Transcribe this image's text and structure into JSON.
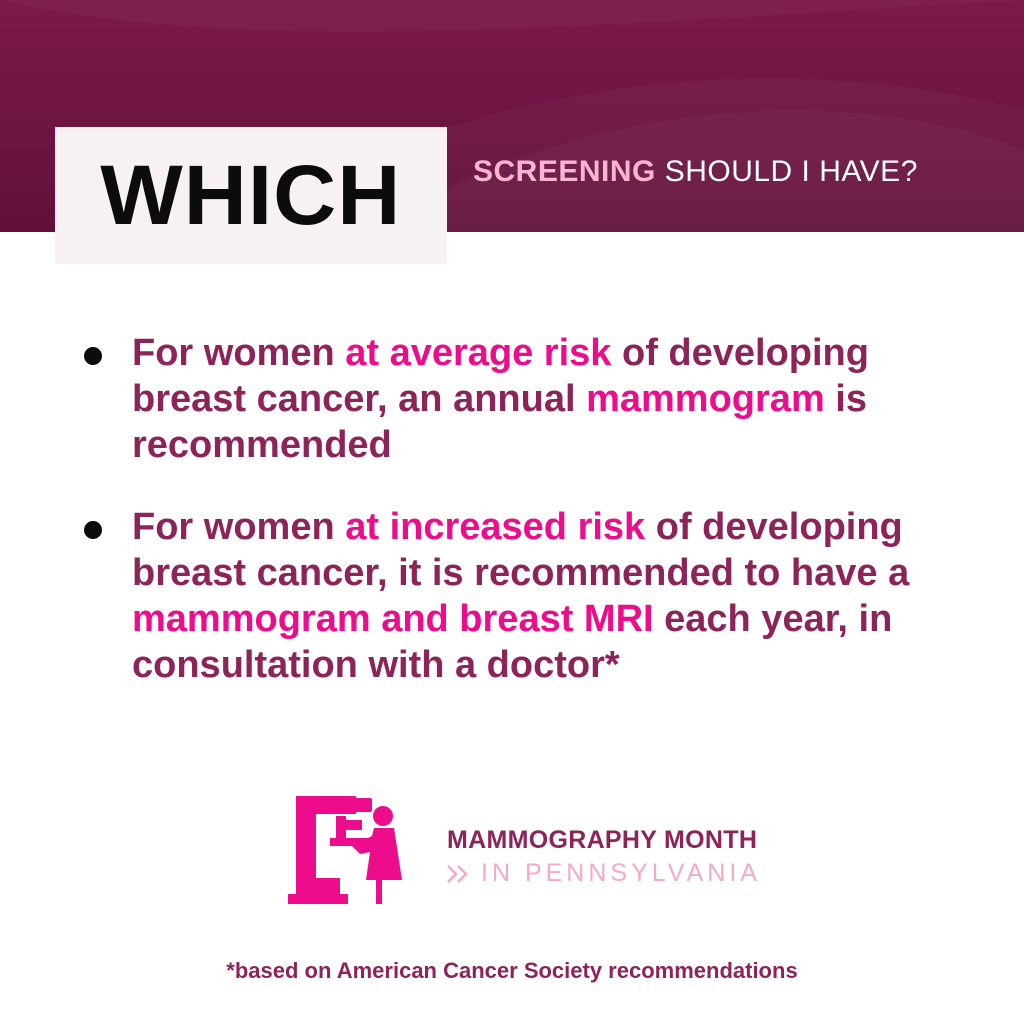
{
  "header": {
    "which_label": "WHICH",
    "accent_word": "SCREENING",
    "rest_text": " SHOULD I HAVE?"
  },
  "bullets": [
    {
      "parts": [
        {
          "text": "For women ",
          "highlight": false
        },
        {
          "text": "at average risk",
          "highlight": true
        },
        {
          "text": " of developing breast cancer, an annual ",
          "highlight": false
        },
        {
          "text": "mammogram",
          "highlight": true
        },
        {
          "text": " is recommended",
          "highlight": false
        }
      ]
    },
    {
      "parts": [
        {
          "text": "For women ",
          "highlight": false
        },
        {
          "text": "at increased risk",
          "highlight": true
        },
        {
          "text": " of developing breast cancer, it is recommended to have a ",
          "highlight": false
        },
        {
          "text": "mammogram and breast MRI",
          "highlight": true
        },
        {
          "text": " each year, in consultation with a doctor*",
          "highlight": false
        }
      ]
    }
  ],
  "brand": {
    "title": "MAMMOGRAPHY MONTH",
    "subtitle": "IN PENNSYLVANIA",
    "icon": "mammography-machine-icon",
    "chevron_icon": "double-chevron-icon"
  },
  "footnote": "*based on American Cancer Society recommendations",
  "colors": {
    "header_band": "#6e1442",
    "text_primary": "#8c2459",
    "highlight": "#ec0c8c",
    "accent_light": "#f7b5d2",
    "subtitle_light": "#f4a9cb"
  }
}
